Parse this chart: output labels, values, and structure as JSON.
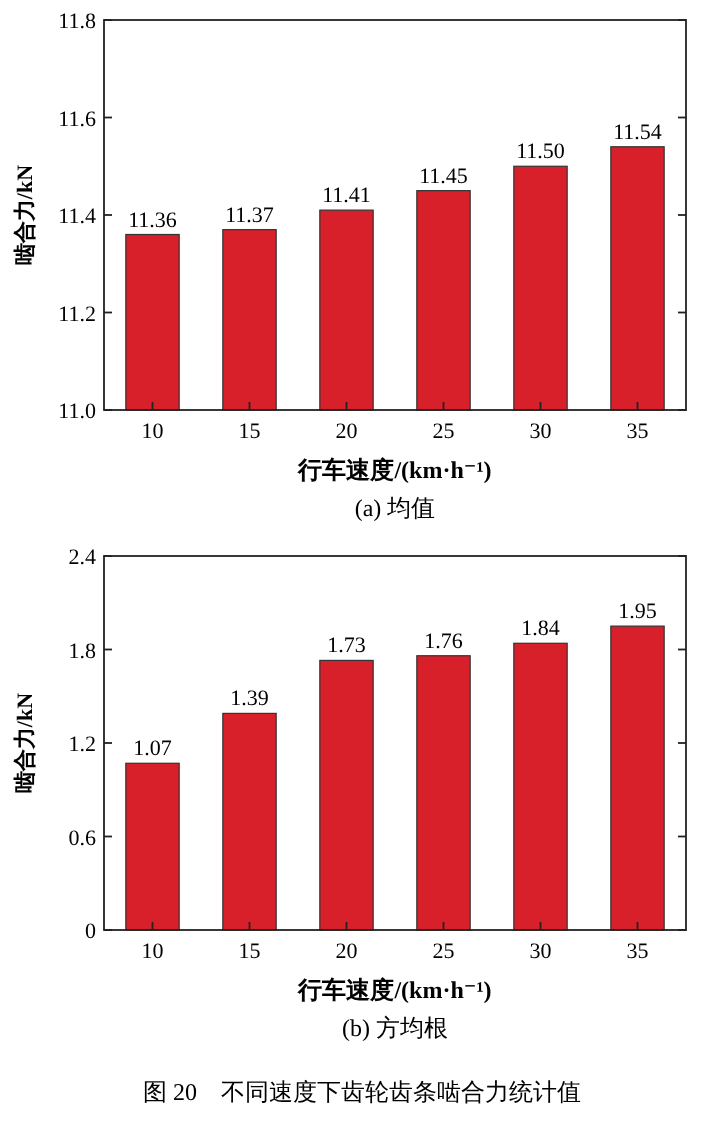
{
  "chart_data": [
    {
      "type": "bar",
      "title": "(a) 均值",
      "xlabel": "行车速度/(km·h⁻¹)",
      "ylabel": "啮合力/kN",
      "categories": [
        "10",
        "15",
        "20",
        "25",
        "30",
        "35"
      ],
      "values": [
        11.36,
        11.37,
        11.41,
        11.45,
        11.5,
        11.54
      ],
      "value_labels": [
        "11.36",
        "11.37",
        "11.41",
        "11.45",
        "11.50",
        "11.54"
      ],
      "color": "#d7202a",
      "ylim": [
        11.0,
        11.8
      ],
      "yticks": [
        {
          "value": 11.0,
          "label": "11.0"
        },
        11.2,
        11.4,
        11.6,
        11.8
      ]
    },
    {
      "type": "bar",
      "title": "(b) 方均根",
      "xlabel": "行车速度/(km·h⁻¹)",
      "ylabel": "啮合力/kN",
      "categories": [
        "10",
        "15",
        "20",
        "25",
        "30",
        "35"
      ],
      "values": [
        1.07,
        1.39,
        1.73,
        1.76,
        1.84,
        1.95
      ],
      "color": "#d7202a",
      "ylim": [
        0,
        2.4
      ],
      "yticks": [
        0,
        0.6,
        1.2,
        1.8,
        2.4
      ],
      "data_labels": true,
      "annotations": [
        "图 20　不同速度下齿轮齿条啮合力统计值"
      ]
    }
  ]
}
